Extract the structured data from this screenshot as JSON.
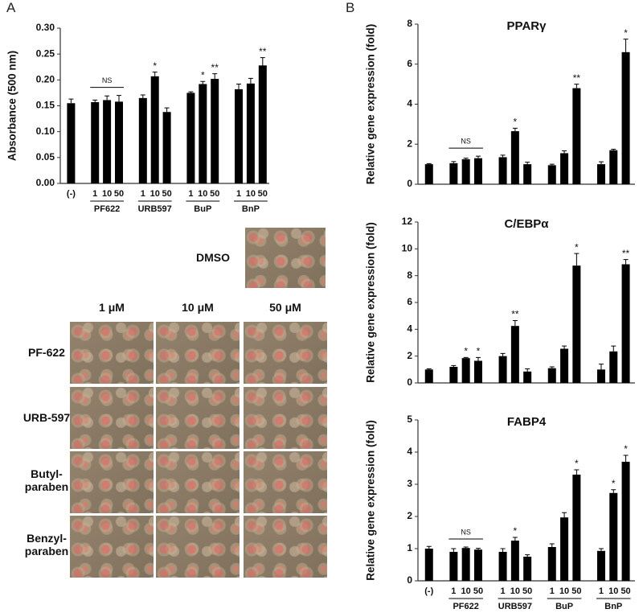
{
  "panels": [
    "A",
    "B"
  ],
  "micrographs": {
    "control": "DMSO",
    "columns": [
      "1 μM",
      "10 μM",
      "50 μM"
    ],
    "rows": [
      "PF-622",
      "URB-597",
      "Butyl-\nparaben",
      "Benzyl-\nparaben"
    ]
  },
  "chart_data": [
    {
      "type": "bar",
      "ylabel": "Absorbance (500 nm)",
      "categories": [
        "(-)",
        "1",
        "10",
        "50",
        "1",
        "10",
        "50",
        "1",
        "10",
        "50",
        "1",
        "10",
        "50"
      ],
      "groups": [
        {
          "label": "PF622",
          "note": "NS"
        },
        {
          "label": "URB597"
        },
        {
          "label": "BuP"
        },
        {
          "label": "BnP"
        }
      ],
      "values": [
        0.155,
        0.157,
        0.161,
        0.158,
        0.165,
        0.207,
        0.138,
        0.175,
        0.192,
        0.202,
        0.182,
        0.193,
        0.228
      ],
      "errors": [
        0.008,
        0.004,
        0.008,
        0.012,
        0.006,
        0.008,
        0.008,
        0.002,
        0.005,
        0.01,
        0.01,
        0.01,
        0.015
      ],
      "significance": [
        null,
        null,
        null,
        null,
        null,
        "*",
        null,
        null,
        "*",
        "**",
        null,
        null,
        "**"
      ],
      "color": "#000000",
      "ylim": [
        0,
        0.3
      ],
      "yticks": [
        {
          "value": 0,
          "label": "0.00"
        },
        {
          "value": 0.05,
          "label": "0.05"
        },
        {
          "value": 0.1,
          "label": "0.10"
        },
        {
          "value": 0.15,
          "label": "0.15"
        },
        {
          "value": 0.2,
          "label": "0.20"
        },
        {
          "value": 0.25,
          "label": "0.25"
        },
        {
          "value": 0.3,
          "label": "0.30"
        }
      ]
    },
    {
      "type": "bar",
      "title": "PPARγ",
      "ylabel": "Relative gene expression (fold)",
      "groups": [
        {
          "note": "NS"
        },
        {},
        {},
        {}
      ],
      "values": [
        1.0,
        1.05,
        1.25,
        1.3,
        1.35,
        2.65,
        1.0,
        0.95,
        1.55,
        4.8,
        1.0,
        1.7,
        6.6
      ],
      "errors": [
        0.03,
        0.08,
        0.05,
        0.1,
        0.1,
        0.15,
        0.1,
        0.05,
        0.12,
        0.2,
        0.12,
        0.05,
        0.65
      ],
      "significance": [
        null,
        null,
        null,
        null,
        null,
        "*",
        null,
        null,
        null,
        "**",
        null,
        null,
        "*"
      ],
      "color": "#000000",
      "ylim": [
        0,
        8
      ],
      "yticks": [
        0,
        2,
        4,
        6,
        8
      ]
    },
    {
      "type": "bar",
      "title": "C/EBPα",
      "ylabel": "Relative gene expression (fold)",
      "groups": [
        {},
        {},
        {},
        {}
      ],
      "values": [
        1.0,
        1.2,
        1.85,
        1.65,
        2.0,
        4.25,
        0.85,
        1.1,
        2.55,
        8.75,
        1.0,
        2.35,
        8.85
      ],
      "errors": [
        0.05,
        0.1,
        0.05,
        0.25,
        0.2,
        0.4,
        0.2,
        0.1,
        0.2,
        0.9,
        0.4,
        0.4,
        0.35
      ],
      "significance": [
        null,
        null,
        "*",
        "*",
        null,
        "**",
        null,
        null,
        null,
        "*",
        null,
        null,
        "**"
      ],
      "color": "#000000",
      "ylim": [
        0,
        12
      ],
      "yticks": [
        0,
        2,
        4,
        6,
        8,
        10,
        12
      ]
    },
    {
      "type": "bar",
      "title": "FABP4",
      "ylabel": "Relative gene expression (fold)",
      "categories": [
        "(-)",
        "1",
        "10",
        "50",
        "1",
        "10",
        "50",
        "1",
        "10",
        "50",
        "1",
        "10",
        "50"
      ],
      "groups": [
        {
          "label": "PF622",
          "note": "NS"
        },
        {
          "label": "URB597"
        },
        {
          "label": "BuP"
        },
        {
          "label": "BnP"
        }
      ],
      "values": [
        1.0,
        0.9,
        1.02,
        0.97,
        0.9,
        1.25,
        0.75,
        1.05,
        1.97,
        3.3,
        0.93,
        2.73,
        3.7
      ],
      "errors": [
        0.07,
        0.1,
        0.03,
        0.04,
        0.1,
        0.1,
        0.06,
        0.1,
        0.15,
        0.15,
        0.07,
        0.1,
        0.2
      ],
      "significance": [
        null,
        null,
        null,
        null,
        null,
        "*",
        null,
        null,
        null,
        "*",
        null,
        "*",
        "*"
      ],
      "color": "#000000",
      "ylim": [
        0,
        5
      ],
      "yticks": [
        0,
        1,
        2,
        3,
        4,
        5
      ]
    }
  ]
}
